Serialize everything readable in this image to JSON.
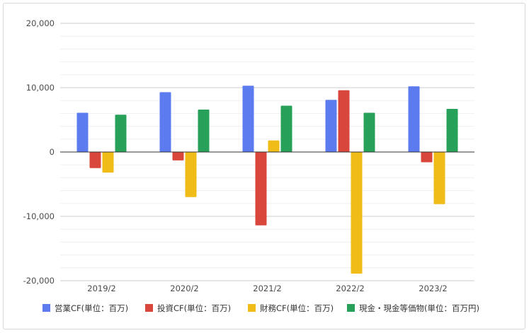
{
  "chart_data": {
    "type": "bar",
    "categories": [
      "2019/2",
      "2020/2",
      "2021/2",
      "2022/2",
      "2023/2"
    ],
    "series": [
      {
        "name": "営業CF(単位：百万)",
        "color": "#5b7bef",
        "values": [
          6100,
          9300,
          10300,
          8100,
          10200
        ]
      },
      {
        "name": "投資CF(単位：百万)",
        "color": "#d9463b",
        "values": [
          -2500,
          -1300,
          -11400,
          9600,
          -1600
        ]
      },
      {
        "name": "財務CF(単位：百万)",
        "color": "#f0bc18",
        "values": [
          -3200,
          -7000,
          1800,
          -18900,
          -8100
        ]
      },
      {
        "name": "現金・現金等価物(単位：百万円)",
        "color": "#27a05a",
        "values": [
          5800,
          6600,
          7200,
          6100,
          6700
        ]
      }
    ],
    "y_ticks": [
      "20,000",
      "10,000",
      "0",
      "-10,000",
      "-20,000"
    ],
    "y_tick_values": [
      20000,
      10000,
      0,
      -10000,
      -20000
    ],
    "ylim": [
      -20000,
      20000
    ],
    "grid": true,
    "legend_position": "bottom"
  }
}
